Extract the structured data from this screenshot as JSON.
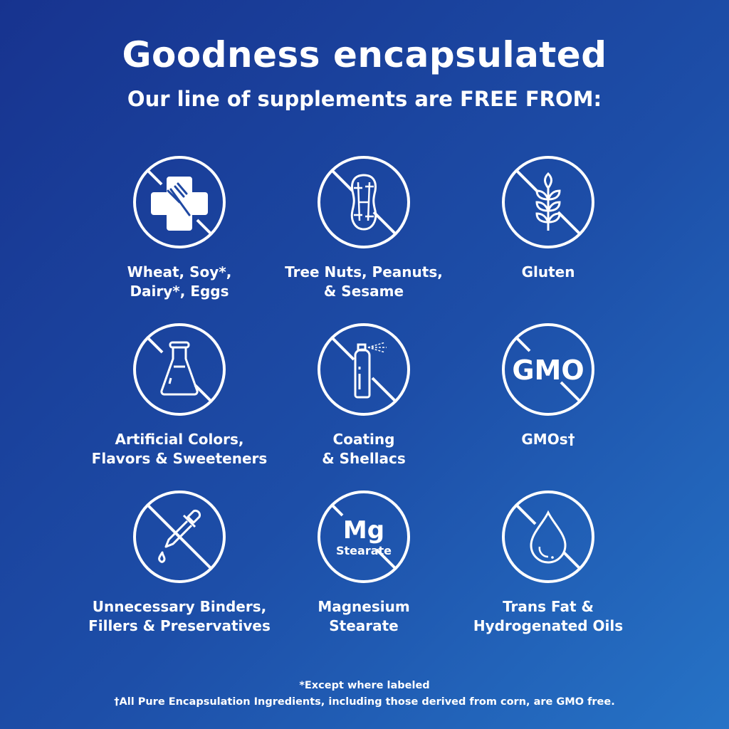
{
  "header": {
    "title": "Goodness encapsulated",
    "subtitle": "Our line of supplements are FREE FROM:"
  },
  "items": [
    {
      "icon": "allergen-cross-fork-icon",
      "label": "Wheat, Soy*,\nDairy*, Eggs"
    },
    {
      "icon": "peanut-icon",
      "label": "Tree Nuts, Peanuts,\n& Sesame"
    },
    {
      "icon": "wheat-grain-icon",
      "label": "Gluten"
    },
    {
      "icon": "flask-icon",
      "label": "Artificial Colors,\nFlavors & Sweeteners"
    },
    {
      "icon": "spray-can-icon",
      "label": "Coating\n& Shellacs"
    },
    {
      "icon": "gmo-text-icon",
      "icon_text": "GMO",
      "label": "GMOs†"
    },
    {
      "icon": "dropper-icon",
      "label": "Unnecessary Binders,\nFillers & Preservatives"
    },
    {
      "icon": "mg-stearate-text-icon",
      "icon_text": "Mg",
      "icon_subtext": "Stearate",
      "label": "Magnesium\nStearate"
    },
    {
      "icon": "oil-drop-icon",
      "label": "Trans Fat &\nHydrogenated Oils"
    }
  ],
  "footnotes": {
    "line1": "*Except where labeled",
    "line2": "†All Pure Encapsulation Ingredients, including those derived from corn, are GMO free."
  },
  "colors": {
    "background_start": "#17338f",
    "background_end": "#2673c6",
    "foreground": "#ffffff"
  }
}
